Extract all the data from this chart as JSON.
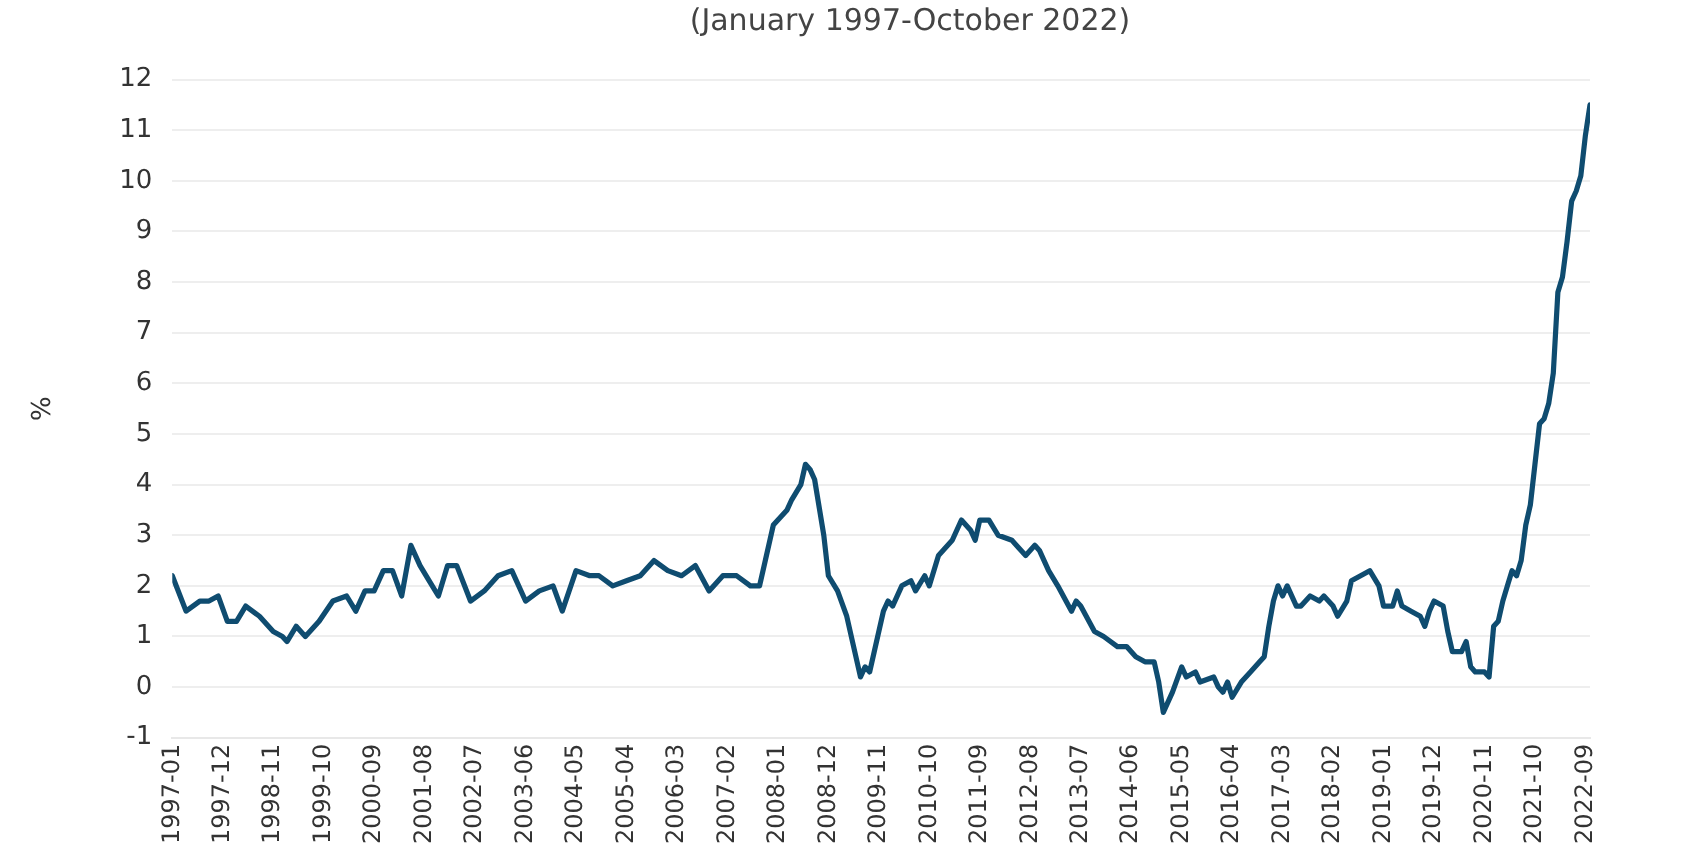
{
  "chart_data": {
    "type": "line",
    "title": "(January 1997-October 2022)",
    "ylabel": "%",
    "xlim": [
      "1997-01",
      "2022-10"
    ],
    "xticks": [
      "1997-01",
      "1997-12",
      "1998-11",
      "1999-10",
      "2000-09",
      "2001-08",
      "2002-07",
      "2003-06",
      "2004-05",
      "2005-04",
      "2006-03",
      "2007-02",
      "2008-01",
      "2008-12",
      "2009-11",
      "2010-10",
      "2011-09",
      "2012-08",
      "2013-07",
      "2014-06",
      "2015-05",
      "2016-04",
      "2017-03",
      "2018-02",
      "2019-01",
      "2019-12",
      "2020-11",
      "2021-10",
      "2022-09"
    ],
    "ylim": [
      -1,
      12
    ],
    "yticks": [
      -1,
      0,
      1,
      2,
      3,
      4,
      5,
      6,
      7,
      8,
      9,
      10,
      11,
      12
    ],
    "grid": "y",
    "legend": false,
    "marker": "none",
    "line_style": "solid",
    "series": [
      {
        "color": "#0f4c70",
        "x": [
          "1997-01",
          "1997-04",
          "1997-07",
          "1997-09",
          "1997-11",
          "1998-01",
          "1998-03",
          "1998-05",
          "1998-08",
          "1998-11",
          "1999-01",
          "1999-02",
          "1999-04",
          "1999-06",
          "1999-09",
          "1999-12",
          "2000-03",
          "2000-05",
          "2000-07",
          "2000-09",
          "2000-11",
          "2001-01",
          "2001-03",
          "2001-05",
          "2001-07",
          "2001-09",
          "2001-11",
          "2002-01",
          "2002-03",
          "2002-06",
          "2002-09",
          "2002-12",
          "2003-03",
          "2003-06",
          "2003-09",
          "2003-12",
          "2004-02",
          "2004-05",
          "2004-08",
          "2004-10",
          "2005-01",
          "2005-04",
          "2005-07",
          "2005-10",
          "2006-01",
          "2006-04",
          "2006-07",
          "2006-10",
          "2007-01",
          "2007-04",
          "2007-07",
          "2007-09",
          "2007-12",
          "2008-03",
          "2008-04",
          "2008-06",
          "2008-07",
          "2008-08",
          "2008-09",
          "2008-11",
          "2008-12",
          "2009-02",
          "2009-04",
          "2009-06",
          "2009-07",
          "2009-08",
          "2009-09",
          "2009-10",
          "2009-12",
          "2010-01",
          "2010-02",
          "2010-04",
          "2010-06",
          "2010-07",
          "2010-09",
          "2010-10",
          "2010-12",
          "2011-03",
          "2011-05",
          "2011-07",
          "2011-08",
          "2011-09",
          "2011-11",
          "2012-01",
          "2012-04",
          "2012-07",
          "2012-09",
          "2012-10",
          "2012-12",
          "2013-02",
          "2013-05",
          "2013-06",
          "2013-07",
          "2013-10",
          "2013-12",
          "2014-03",
          "2014-05",
          "2014-07",
          "2014-09",
          "2014-11",
          "2014-12",
          "2015-01",
          "2015-03",
          "2015-05",
          "2015-06",
          "2015-08",
          "2015-09",
          "2015-12",
          "2016-01",
          "2016-02",
          "2016-03",
          "2016-04",
          "2016-06",
          "2016-08",
          "2016-10",
          "2016-11",
          "2016-12",
          "2017-01",
          "2017-02",
          "2017-03",
          "2017-04",
          "2017-06",
          "2017-07",
          "2017-09",
          "2017-11",
          "2017-12",
          "2018-02",
          "2018-03",
          "2018-05",
          "2018-06",
          "2018-08",
          "2018-10",
          "2018-12",
          "2019-01",
          "2019-03",
          "2019-04",
          "2019-05",
          "2019-07",
          "2019-09",
          "2019-10",
          "2019-11",
          "2019-12",
          "2020-02",
          "2020-03",
          "2020-04",
          "2020-06",
          "2020-07",
          "2020-08",
          "2020-09",
          "2020-11",
          "2020-12",
          "2021-01",
          "2021-02",
          "2021-03",
          "2021-04",
          "2021-05",
          "2021-06",
          "2021-07",
          "2021-08",
          "2021-09",
          "2021-10",
          "2021-11",
          "2021-12",
          "2022-01",
          "2022-02",
          "2022-03",
          "2022-04",
          "2022-05",
          "2022-06",
          "2022-07",
          "2022-08",
          "2022-09",
          "2022-10"
        ],
        "values": [
          2.2,
          1.5,
          1.7,
          1.7,
          1.8,
          1.3,
          1.3,
          1.6,
          1.4,
          1.1,
          1.0,
          0.9,
          1.2,
          1.0,
          1.3,
          1.7,
          1.8,
          1.5,
          1.9,
          1.9,
          2.3,
          2.3,
          1.8,
          2.8,
          2.4,
          2.1,
          1.8,
          2.4,
          2.4,
          1.7,
          1.9,
          2.2,
          2.3,
          1.7,
          1.9,
          2.0,
          1.5,
          2.3,
          2.2,
          2.2,
          2.0,
          2.1,
          2.2,
          2.5,
          2.3,
          2.2,
          2.4,
          1.9,
          2.2,
          2.2,
          2.0,
          2.0,
          3.2,
          3.5,
          3.7,
          4.0,
          4.4,
          4.3,
          4.1,
          3.0,
          2.2,
          1.9,
          1.4,
          0.6,
          0.2,
          0.4,
          0.3,
          0.7,
          1.5,
          1.7,
          1.6,
          2.0,
          2.1,
          1.9,
          2.2,
          2.0,
          2.6,
          2.9,
          3.3,
          3.1,
          2.9,
          3.3,
          3.3,
          3.0,
          2.9,
          2.6,
          2.8,
          2.7,
          2.3,
          2.0,
          1.5,
          1.7,
          1.6,
          1.1,
          1.0,
          0.8,
          0.8,
          0.6,
          0.5,
          0.5,
          0.1,
          -0.5,
          -0.1,
          0.4,
          0.2,
          0.3,
          0.1,
          0.2,
          0.0,
          -0.1,
          0.1,
          -0.2,
          0.1,
          0.3,
          0.5,
          0.6,
          1.2,
          1.7,
          2.0,
          1.8,
          2.0,
          1.6,
          1.6,
          1.8,
          1.7,
          1.8,
          1.6,
          1.4,
          1.7,
          2.1,
          2.2,
          2.3,
          2.0,
          1.6,
          1.6,
          1.9,
          1.6,
          1.5,
          1.4,
          1.2,
          1.5,
          1.7,
          1.6,
          1.1,
          0.7,
          0.7,
          0.9,
          0.4,
          0.3,
          0.3,
          0.2,
          1.2,
          1.3,
          1.7,
          2.0,
          2.3,
          2.2,
          2.5,
          3.2,
          3.6,
          4.4,
          5.2,
          5.3,
          5.6,
          6.2,
          7.8,
          8.1,
          8.8,
          9.6,
          9.8,
          10.1,
          10.9,
          11.5
        ]
      }
    ]
  }
}
